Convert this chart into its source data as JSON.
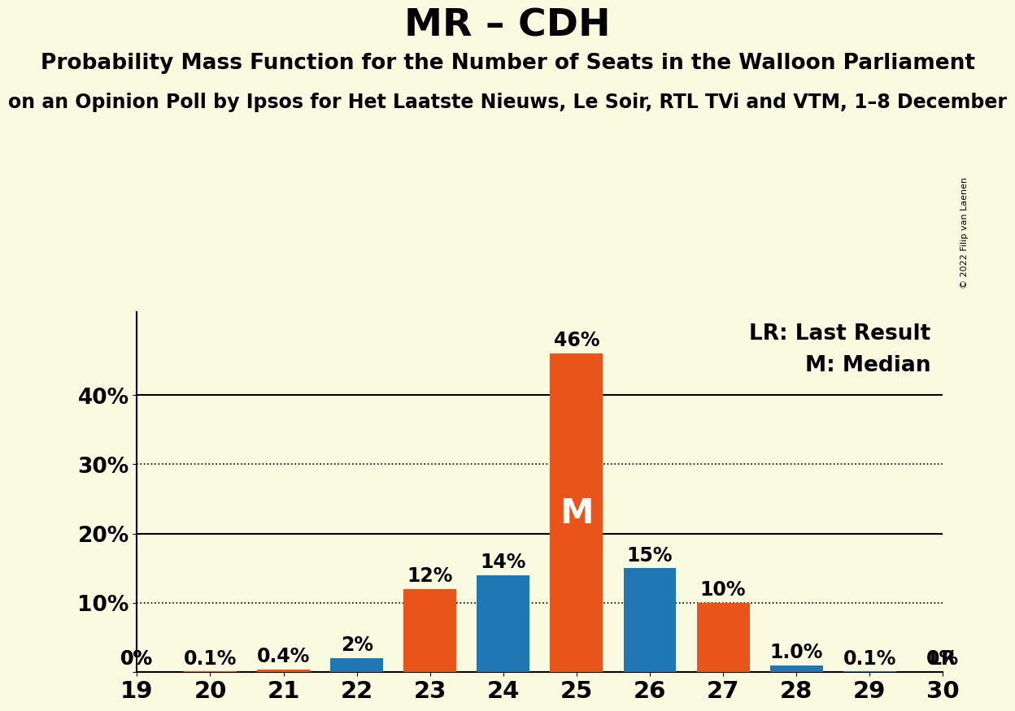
{
  "title": "MR – CDH",
  "subtitle1": "Probability Mass Function for the Number of Seats in the Walloon Parliament",
  "subtitle2": "on an Opinion Poll by Ipsos for Het Laatste Nieuws, Le Soir, RTL TVi and VTM, 1–8 December",
  "watermark": "© 2022 Filip van Laenen",
  "seats": [
    19,
    20,
    21,
    22,
    23,
    24,
    25,
    26,
    27,
    28,
    29,
    30
  ],
  "orange_values": [
    0.0,
    0.001,
    0.004,
    0.0,
    0.12,
    0.0,
    0.46,
    0.0,
    0.1,
    0.0,
    0.0,
    0.0
  ],
  "blue_values": [
    0.0,
    0.0,
    0.0,
    0.02,
    0.0,
    0.14,
    0.0,
    0.15,
    0.0,
    0.01,
    0.001,
    0.0
  ],
  "orange_labels": [
    "",
    "0.1%",
    "0.4%",
    "",
    "12%",
    "",
    "46%",
    "",
    "10%",
    "",
    "",
    ""
  ],
  "blue_labels": [
    "0%",
    "",
    "",
    "2%",
    "",
    "14%",
    "",
    "15%",
    "",
    "1.0%",
    "0.1%",
    ""
  ],
  "lr_label_seats": [
    30
  ],
  "median_seat": 25,
  "lr_seat": 30,
  "orange_color": "#E8541A",
  "blue_color": "#1F77B4",
  "background_color": "#FAFAE0",
  "ylim": [
    0,
    0.52
  ],
  "yticks": [
    0.0,
    0.1,
    0.2,
    0.3,
    0.4
  ],
  "ytick_labels": [
    "",
    "10%",
    "20%",
    "30%",
    "40%"
  ],
  "solid_hlines": [
    0.2,
    0.4
  ],
  "dotted_hlines": [
    0.1,
    0.3
  ],
  "legend_lr": "LR: Last Result",
  "legend_m": "M: Median",
  "title_fontsize": 34,
  "subtitle1_fontsize": 19,
  "subtitle2_fontsize": 17,
  "bar_label_fontsize": 17,
  "legend_fontsize": 19,
  "xtick_fontsize": 21,
  "ytick_fontsize": 19,
  "median_label_fontsize": 30,
  "lr_above_fontsize": 17,
  "bar_width": 0.72
}
